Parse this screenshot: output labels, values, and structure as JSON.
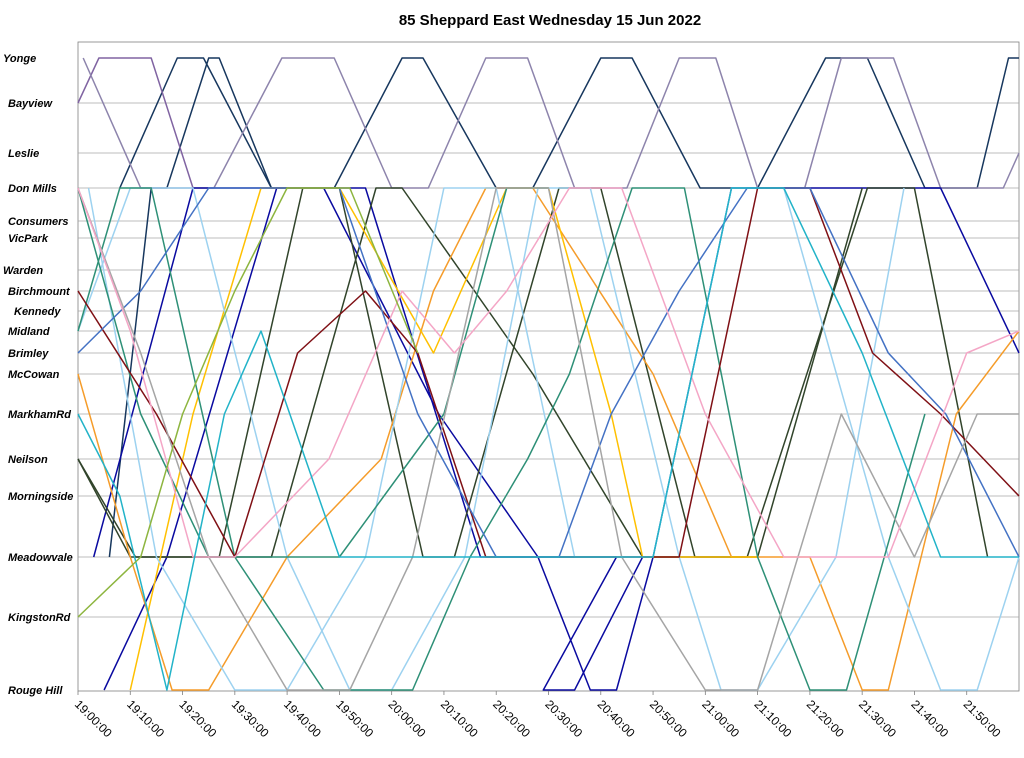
{
  "chart_data": {
    "type": "line",
    "title": "85 Sheppard East Wednesday 15 Jun 2022",
    "x_ticks": [
      "19:00:00",
      "19:10:00",
      "19:20:00",
      "19:30:00",
      "19:40:00",
      "19:50:00",
      "20:00:00",
      "20:10:00",
      "20:20:00",
      "20:30:00",
      "20:40:00",
      "20:50:00",
      "21:00:00",
      "21:10:00",
      "21:20:00",
      "21:30:00",
      "21:40:00",
      "21:50:00"
    ],
    "xlim": [
      "19:00:00",
      "22:00:00"
    ],
    "stops": [
      "Yonge",
      "Bayview",
      "Leslie",
      "Don Mills",
      "Consumers",
      "VicPark",
      "Warden",
      "Birchmount",
      "Kennedy",
      "Midland",
      "Brimley",
      "McCowan",
      "MarkhamRd",
      "Neilson",
      "Morningside",
      "Meadowvale",
      "KingstonRd",
      "Rouge Hill"
    ],
    "grid": true,
    "legend": "none",
    "series": [
      {
        "color": "#17375e",
        "points": [
          [
            "19:06",
            15
          ],
          [
            "19:14",
            3
          ],
          [
            "19:17",
            3
          ],
          [
            "19:25",
            0
          ],
          [
            "19:27",
            0
          ],
          [
            "19:37",
            3
          ]
        ]
      },
      {
        "color": "#17375e",
        "points": [
          [
            "19:08",
            3
          ],
          [
            "19:19",
            0
          ],
          [
            "19:24",
            0
          ],
          [
            "19:37",
            3
          ],
          [
            "19:49",
            3
          ],
          [
            "20:02",
            0
          ],
          [
            "20:06",
            0
          ],
          [
            "20:20",
            3
          ],
          [
            "20:27",
            3
          ],
          [
            "20:40",
            0
          ],
          [
            "20:46",
            0
          ],
          [
            "20:59",
            3
          ],
          [
            "21:10",
            3
          ],
          [
            "21:23",
            0
          ],
          [
            "21:31",
            0
          ],
          [
            "21:42",
            3
          ],
          [
            "21:52",
            3
          ],
          [
            "21:58",
            0
          ],
          [
            "22:00",
            0
          ]
        ]
      },
      {
        "color": "#8064a2",
        "points": [
          [
            "19:00",
            1
          ],
          [
            "19:04",
            0
          ],
          [
            "19:14",
            0
          ],
          [
            "19:22",
            3
          ]
        ]
      },
      {
        "color": "#8d84ac",
        "points": [
          [
            "19:01",
            0
          ],
          [
            "19:12",
            3
          ],
          [
            "19:26",
            3
          ],
          [
            "19:39",
            0
          ],
          [
            "19:49",
            0
          ],
          [
            "20:00",
            3
          ],
          [
            "20:07",
            3
          ],
          [
            "20:18",
            0
          ],
          [
            "20:26",
            0
          ],
          [
            "20:35",
            3
          ],
          [
            "20:45",
            3
          ],
          [
            "20:55",
            0
          ],
          [
            "21:02",
            0
          ],
          [
            "21:10",
            3
          ],
          [
            "21:19",
            3
          ],
          [
            "21:26",
            0
          ],
          [
            "21:36",
            0
          ],
          [
            "21:45",
            3
          ],
          [
            "21:57",
            3
          ],
          [
            "22:00",
            2
          ]
        ]
      },
      {
        "color": "#0a0aa0",
        "points": [
          [
            "19:03",
            15
          ],
          [
            "19:22",
            3
          ],
          [
            "19:55",
            3
          ],
          [
            "20:17",
            15
          ],
          [
            "20:43",
            15
          ],
          [
            "20:29",
            17
          ],
          [
            "20:35",
            17
          ],
          [
            "20:48",
            15
          ]
        ]
      },
      {
        "color": "#0a0aa0",
        "points": [
          [
            "19:05",
            17
          ],
          [
            "19:17",
            15
          ],
          [
            "19:38",
            3
          ],
          [
            "19:47",
            3
          ],
          [
            "20:09",
            12
          ],
          [
            "20:28",
            15
          ],
          [
            "20:38",
            17
          ],
          [
            "20:43",
            17
          ],
          [
            "20:50",
            15
          ],
          [
            "21:05",
            3
          ],
          [
            "21:27",
            3
          ],
          [
            "21:38",
            3
          ],
          [
            "21:45",
            3
          ],
          [
            "22:00",
            10
          ]
        ]
      },
      {
        "color": "#31442b",
        "points": [
          [
            "19:00",
            13
          ],
          [
            "19:10",
            15
          ],
          [
            "19:27",
            15
          ],
          [
            "19:43",
            3
          ],
          [
            "19:50",
            3
          ],
          [
            "20:06",
            15
          ],
          [
            "20:12",
            15
          ],
          [
            "20:32",
            3
          ],
          [
            "20:40",
            3
          ],
          [
            "20:58",
            15
          ],
          [
            "21:08",
            15
          ],
          [
            "21:31",
            3
          ],
          [
            "21:40",
            3
          ],
          [
            "21:54",
            15
          ]
        ]
      },
      {
        "color": "#31442b",
        "points": [
          [
            "19:00",
            13
          ],
          [
            "19:11",
            15
          ],
          [
            "19:37",
            15
          ],
          [
            "19:57",
            3
          ],
          [
            "20:02",
            3
          ],
          [
            "20:27",
            11
          ],
          [
            "20:48",
            15
          ],
          [
            "21:10",
            15
          ],
          [
            "21:30",
            3
          ]
        ]
      },
      {
        "color": "#f59c2a",
        "points": [
          [
            "19:00",
            11
          ],
          [
            "19:10",
            15
          ],
          [
            "19:18",
            17
          ],
          [
            "19:25",
            17
          ],
          [
            "19:40",
            15
          ],
          [
            "19:58",
            13
          ],
          [
            "20:08",
            7
          ],
          [
            "20:18",
            3
          ],
          [
            "20:27",
            3
          ],
          [
            "20:50",
            11
          ],
          [
            "21:05",
            15
          ],
          [
            "21:20",
            15
          ],
          [
            "21:30",
            17
          ],
          [
            "21:35",
            17
          ],
          [
            "21:48",
            12
          ],
          [
            "22:00",
            9
          ]
        ]
      },
      {
        "color": "#ffc000",
        "points": [
          [
            "19:10",
            17
          ],
          [
            "19:22",
            12
          ],
          [
            "19:35",
            3
          ],
          [
            "19:50",
            3
          ],
          [
            "20:08",
            10
          ],
          [
            "20:22",
            3
          ],
          [
            "20:30",
            3
          ],
          [
            "20:42",
            12
          ],
          [
            "20:48",
            15
          ],
          [
            "21:10",
            15
          ]
        ]
      },
      {
        "color": "#9dd2f0",
        "points": [
          [
            "19:02",
            3
          ],
          [
            "19:15",
            15
          ],
          [
            "19:30",
            17
          ],
          [
            "19:40",
            17
          ],
          [
            "19:55",
            15
          ],
          [
            "20:10",
            3
          ],
          [
            "20:20",
            3
          ],
          [
            "20:35",
            15
          ],
          [
            "20:50",
            15
          ],
          [
            "21:05",
            3
          ],
          [
            "21:15",
            3
          ],
          [
            "21:35",
            15
          ],
          [
            "21:45",
            17
          ],
          [
            "21:52",
            17
          ],
          [
            "22:00",
            15
          ]
        ]
      },
      {
        "color": "#9dd2f0",
        "points": [
          [
            "19:00",
            9
          ],
          [
            "19:10",
            3
          ],
          [
            "19:22",
            3
          ],
          [
            "19:40",
            15
          ],
          [
            "19:52",
            17
          ],
          [
            "20:00",
            17
          ],
          [
            "20:14",
            15
          ],
          [
            "20:28",
            3
          ],
          [
            "20:38",
            3
          ],
          [
            "20:55",
            15
          ],
          [
            "21:03",
            17
          ],
          [
            "21:10",
            17
          ],
          [
            "21:25",
            15
          ],
          [
            "21:38",
            3
          ]
        ]
      },
      {
        "color": "#2e9077",
        "points": [
          [
            "19:00",
            9
          ],
          [
            "19:08",
            3
          ],
          [
            "19:14",
            3
          ],
          [
            "19:30",
            15
          ],
          [
            "19:47",
            17
          ],
          [
            "20:04",
            17
          ],
          [
            "20:15",
            15
          ],
          [
            "20:26",
            13
          ],
          [
            "20:34",
            11
          ],
          [
            "20:46",
            3
          ],
          [
            "20:56",
            3
          ],
          [
            "21:10",
            15
          ],
          [
            "21:20",
            17
          ],
          [
            "21:27",
            17
          ],
          [
            "21:42",
            12
          ]
        ]
      },
      {
        "color": "#2e9077",
        "points": [
          [
            "19:00",
            3
          ],
          [
            "19:12",
            12
          ],
          [
            "19:25",
            15
          ],
          [
            "19:35",
            15
          ],
          [
            "19:50",
            15
          ],
          [
            "20:10",
            12
          ],
          [
            "20:22",
            3
          ],
          [
            "20:30",
            3
          ]
        ]
      },
      {
        "color": "#7f1015",
        "points": [
          [
            "19:00",
            7
          ],
          [
            "19:15",
            12
          ],
          [
            "19:30",
            15
          ],
          [
            "19:42",
            10
          ],
          [
            "19:55",
            7
          ],
          [
            "20:05",
            10
          ],
          [
            "20:18",
            15
          ],
          [
            "20:55",
            15
          ],
          [
            "21:10",
            3
          ],
          [
            "21:20",
            3
          ],
          [
            "21:32",
            10
          ],
          [
            "21:45",
            12
          ],
          [
            "22:00",
            14
          ]
        ]
      },
      {
        "color": "#4472c4",
        "points": [
          [
            "19:00",
            10
          ],
          [
            "19:12",
            7
          ],
          [
            "19:25",
            3
          ],
          [
            "19:50",
            3
          ],
          [
            "20:05",
            12
          ],
          [
            "20:20",
            15
          ],
          [
            "20:32",
            15
          ],
          [
            "20:42",
            12
          ],
          [
            "20:55",
            7
          ],
          [
            "21:08",
            3
          ],
          [
            "21:20",
            3
          ],
          [
            "21:35",
            10
          ],
          [
            "21:46",
            12
          ],
          [
            "22:00",
            15
          ]
        ]
      },
      {
        "color": "#a5a5a5",
        "points": [
          [
            "19:00",
            3
          ],
          [
            "19:12",
            10
          ],
          [
            "19:25",
            15
          ],
          [
            "19:40",
            17
          ],
          [
            "19:52",
            17
          ],
          [
            "20:04",
            15
          ],
          [
            "20:20",
            3
          ],
          [
            "20:30",
            3
          ],
          [
            "20:44",
            15
          ],
          [
            "21:00",
            17
          ],
          [
            "21:10",
            17
          ],
          [
            "21:26",
            12
          ],
          [
            "21:40",
            15
          ],
          [
            "21:52",
            12
          ],
          [
            "22:00",
            12
          ]
        ]
      },
      {
        "color": "#f4a6c6",
        "points": [
          [
            "19:00",
            3
          ],
          [
            "19:10",
            9
          ],
          [
            "19:22",
            15
          ],
          [
            "19:30",
            15
          ],
          [
            "19:48",
            13
          ],
          [
            "20:02",
            7
          ],
          [
            "20:12",
            10
          ],
          [
            "20:22",
            7
          ],
          [
            "20:34",
            3
          ],
          [
            "20:44",
            3
          ],
          [
            "21:00",
            12
          ],
          [
            "21:15",
            15
          ],
          [
            "21:35",
            15
          ],
          [
            "21:50",
            10
          ],
          [
            "22:00",
            9
          ]
        ]
      },
      {
        "color": "#22b3c8",
        "points": [
          [
            "19:00",
            12
          ],
          [
            "19:08",
            14
          ],
          [
            "19:17",
            17
          ],
          [
            "19:28",
            12
          ],
          [
            "19:35",
            9
          ],
          [
            "19:50",
            15
          ],
          [
            "20:08",
            15
          ],
          [
            "20:50",
            15
          ],
          [
            "21:05",
            3
          ],
          [
            "21:15",
            3
          ],
          [
            "21:30",
            10
          ],
          [
            "21:45",
            15
          ],
          [
            "22:00",
            15
          ]
        ]
      },
      {
        "color": "#8db53f",
        "points": [
          [
            "19:00",
            16
          ],
          [
            "19:12",
            15
          ],
          [
            "19:20",
            12
          ],
          [
            "19:30",
            7
          ],
          [
            "19:40",
            3
          ],
          [
            "19:52",
            3
          ],
          [
            "20:05",
            10
          ]
        ]
      }
    ]
  }
}
